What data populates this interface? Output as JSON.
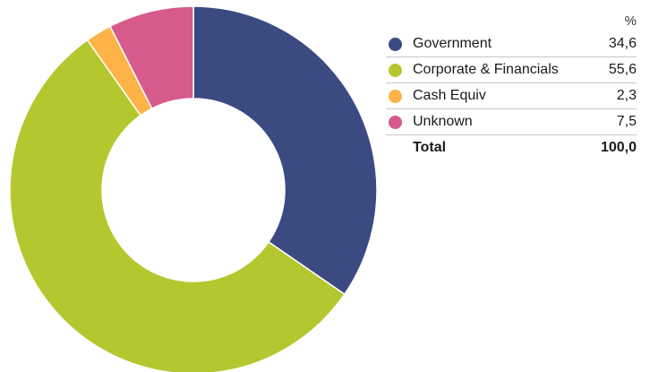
{
  "chart_data": {
    "type": "pie",
    "value_header": "%",
    "slices": [
      {
        "label": "Government",
        "value": "34,6",
        "share": 34.6,
        "color": "#3b4b82"
      },
      {
        "label": "Corporate & Financials",
        "value": "55,6",
        "share": 55.6,
        "color": "#b5c72e"
      },
      {
        "label": "Cash Equiv",
        "value": "2,3",
        "share": 2.3,
        "color": "#fdb347"
      },
      {
        "label": "Unknown",
        "value": "7,5",
        "share": 7.5,
        "color": "#d65a8c"
      }
    ],
    "total": {
      "label": "Total",
      "value": "100,0"
    },
    "donut": true
  }
}
